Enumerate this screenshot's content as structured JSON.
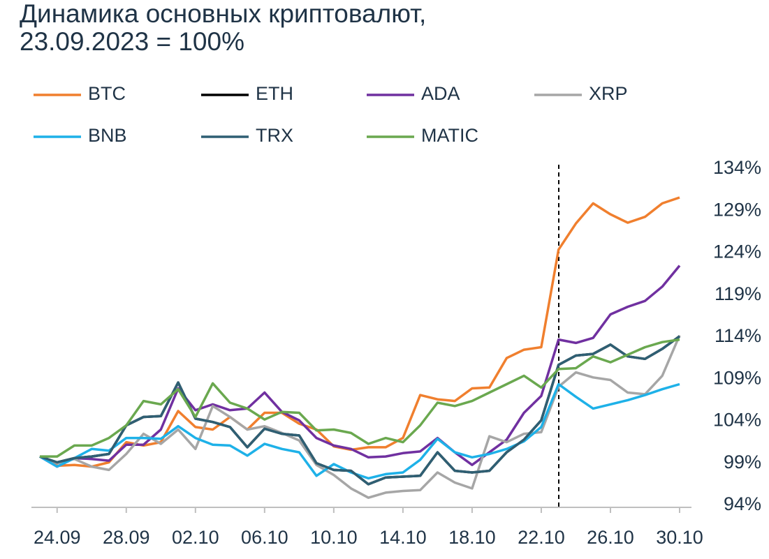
{
  "chart_data": {
    "type": "line",
    "title": [
      "Динамика основных криптовалют,",
      "23.09.2023 = 100%"
    ],
    "categories": [
      null,
      "24.09",
      null,
      null,
      null,
      "28.09",
      null,
      null,
      null,
      "02.10",
      null,
      null,
      null,
      "06.10",
      null,
      null,
      null,
      "10.10",
      null,
      null,
      null,
      "14.10",
      null,
      null,
      null,
      "18.10",
      null,
      null,
      null,
      "22.10",
      null,
      null,
      null,
      "26.10",
      null,
      null,
      null,
      "30.10"
    ],
    "series": [
      {
        "name": "BTC",
        "color": "#f07f2e",
        "values": [
          99.8,
          98.7,
          98.8,
          98.6,
          99.1,
          101.5,
          101.1,
          101.5,
          105.2,
          103.3,
          103.0,
          104.5,
          103.0,
          105.0,
          105.0,
          103.7,
          103.0,
          101.0,
          100.6,
          100.9,
          100.9,
          102.0,
          107.1,
          106.6,
          106.4,
          107.9,
          108.0,
          111.5,
          112.5,
          112.8,
          124.4,
          127.5,
          129.9,
          128.6,
          127.6,
          128.3,
          129.9,
          130.6
        ]
      },
      {
        "name": "ETH",
        "color": "#000000",
        "values": [
          99.8,
          99.1,
          99.6,
          99.8,
          100.1,
          103.5,
          104.5,
          104.6,
          108.6,
          104.3,
          103.9,
          103.3,
          100.9,
          103.1,
          102.5,
          102.3,
          99.0,
          98.2,
          98.1,
          96.5,
          97.3,
          97.4,
          97.5,
          100.3,
          98.1,
          97.9,
          98.1,
          100.3,
          101.8,
          104.1,
          110.7,
          111.8,
          112.0,
          113.1,
          111.7,
          111.4,
          112.6,
          114.1
        ]
      },
      {
        "name": "ADA",
        "color": "#7030a0",
        "values": [
          99.8,
          98.6,
          99.6,
          99.5,
          99.3,
          101.2,
          101.2,
          103.0,
          107.9,
          105.3,
          106.0,
          105.3,
          105.5,
          107.4,
          105.1,
          104.1,
          102.0,
          101.1,
          100.7,
          99.7,
          99.8,
          100.2,
          100.4,
          102.0,
          100.3,
          98.8,
          100.3,
          101.8,
          105.0,
          107.0,
          113.7,
          113.3,
          113.9,
          116.7,
          117.6,
          118.3,
          120.0,
          122.5
        ]
      },
      {
        "name": "XRP",
        "color": "#a6a6a6",
        "values": [
          99.8,
          99.0,
          99.5,
          98.6,
          98.2,
          100.1,
          102.5,
          101.3,
          103.0,
          100.7,
          105.8,
          104.5,
          103.0,
          103.4,
          102.6,
          101.7,
          98.8,
          97.6,
          96.0,
          94.9,
          95.5,
          95.7,
          95.8,
          97.9,
          96.7,
          96.0,
          102.2,
          101.5,
          102.5,
          102.7,
          108.1,
          109.8,
          109.2,
          108.9,
          107.4,
          107.2,
          109.4,
          114.2
        ]
      },
      {
        "name": "BNB",
        "color": "#1eb1e8",
        "values": [
          99.8,
          98.6,
          99.6,
          100.7,
          100.5,
          102.0,
          102.0,
          101.9,
          103.4,
          102.0,
          101.2,
          101.1,
          99.9,
          101.3,
          100.7,
          100.3,
          97.5,
          98.9,
          97.9,
          97.2,
          97.7,
          97.9,
          99.4,
          101.9,
          100.3,
          99.7,
          100.1,
          100.7,
          101.6,
          103.3,
          108.4,
          106.9,
          105.5,
          106.0,
          106.5,
          107.1,
          107.8,
          108.4
        ]
      },
      {
        "name": "TRX",
        "color": "#2f5f73",
        "values": [
          99.8,
          99.1,
          99.6,
          99.8,
          100.1,
          103.5,
          104.5,
          104.6,
          108.6,
          104.3,
          103.9,
          103.3,
          100.9,
          103.1,
          102.5,
          102.3,
          99.0,
          98.2,
          98.1,
          96.5,
          97.3,
          97.4,
          97.5,
          100.3,
          98.1,
          97.9,
          98.1,
          100.3,
          101.8,
          104.1,
          110.7,
          111.8,
          112.0,
          113.1,
          111.7,
          111.4,
          112.6,
          114.1
        ]
      },
      {
        "name": "MATIC",
        "color": "#6aa84f",
        "values": [
          99.8,
          99.8,
          101.1,
          101.1,
          102.0,
          103.5,
          106.4,
          106.0,
          107.8,
          104.5,
          108.5,
          106.2,
          105.5,
          104.2,
          105.1,
          105.0,
          102.9,
          103.0,
          102.6,
          101.3,
          102.0,
          101.5,
          103.5,
          106.2,
          105.8,
          106.4,
          107.4,
          108.4,
          109.4,
          108.0,
          110.2,
          110.3,
          111.7,
          111.0,
          111.9,
          112.8,
          113.4,
          113.7
        ]
      }
    ],
    "ylim": [
      94,
      134
    ],
    "yticks": [
      {
        "value": 94,
        "label": "94%"
      },
      {
        "value": 99,
        "label": "99%"
      },
      {
        "value": 104,
        "label": "104%"
      },
      {
        "value": 109,
        "label": "109%"
      },
      {
        "value": 114,
        "label": "114%"
      },
      {
        "value": 119,
        "label": "119%"
      },
      {
        "value": 124,
        "label": "124%"
      },
      {
        "value": 129,
        "label": "129%"
      },
      {
        "value": 134,
        "label": "134%"
      }
    ],
    "y_axis_side": "right",
    "grid": false
  }
}
